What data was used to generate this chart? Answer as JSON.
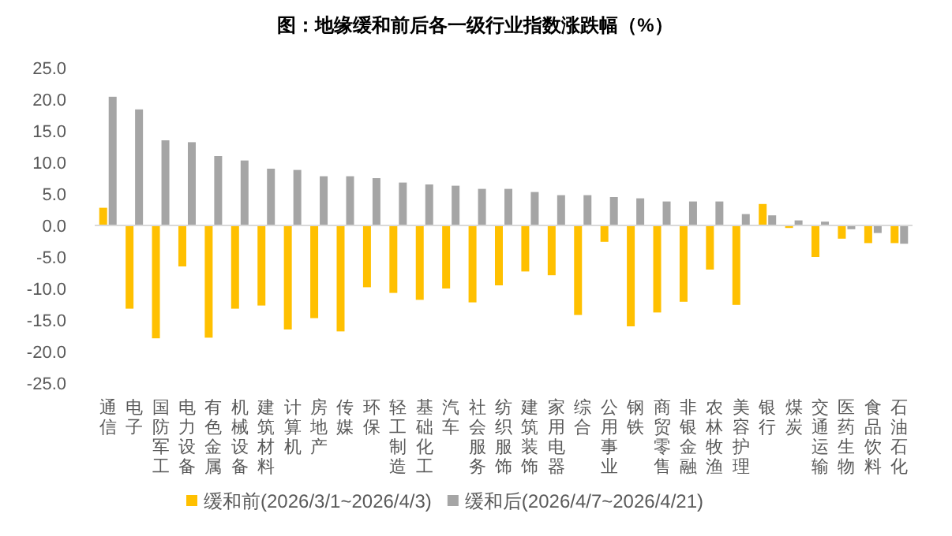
{
  "chart_data": {
    "type": "bar",
    "title": "图：地缘缓和前后各一级行业指数涨跌幅（%）",
    "categories": [
      "通信",
      "电子",
      "国防军工",
      "电力设备",
      "有色金属",
      "机械设备",
      "建筑材料",
      "计算机",
      "房地产",
      "传媒",
      "环保",
      "轻工制造",
      "基础化工",
      "汽车",
      "社会服务",
      "纺织服饰",
      "建筑装饰",
      "家用电器",
      "综合",
      "公用事业",
      "钢铁",
      "商贸零售",
      "非银金融",
      "农林牧渔",
      "美容护理",
      "银行",
      "煤炭",
      "交通运输",
      "医药生物",
      "食品饮料",
      "石油石化"
    ],
    "series": [
      {
        "name": "缓和前(2026/3/1~2026/4/3)",
        "color": "#ffc000",
        "values": [
          2.8,
          -13.2,
          -17.9,
          -6.5,
          -17.8,
          -13.2,
          -12.7,
          -16.5,
          -14.7,
          -16.8,
          -9.8,
          -10.7,
          -11.8,
          -10.0,
          -12.2,
          -9.5,
          -7.3,
          -7.9,
          -14.2,
          -2.6,
          -16.0,
          -13.8,
          -12.1,
          -7.0,
          -12.6,
          3.4,
          -0.4,
          -5.0,
          -2.1,
          -2.8,
          -2.8
        ]
      },
      {
        "name": "缓和后(2026/4/7~2026/4/21)",
        "color": "#a5a5a5",
        "values": [
          20.4,
          18.4,
          13.5,
          13.2,
          11.0,
          10.3,
          9.0,
          8.8,
          7.8,
          7.8,
          7.5,
          6.8,
          6.5,
          6.3,
          5.8,
          5.8,
          5.3,
          4.8,
          4.8,
          4.5,
          4.3,
          3.8,
          3.8,
          3.8,
          1.8,
          1.6,
          0.8,
          0.6,
          -0.6,
          -1.2,
          -2.9
        ]
      }
    ],
    "ylim": [
      -25,
      25
    ],
    "yticks": [
      {
        "value": -25,
        "label": "-25.0"
      },
      {
        "value": -20,
        "label": "-20.0"
      },
      {
        "value": -15,
        "label": "-15.0"
      },
      {
        "value": -10,
        "label": "-10.0"
      },
      {
        "value": -5,
        "label": "-5.0"
      },
      {
        "value": 0,
        "label": "0.0"
      },
      {
        "value": 5,
        "label": "5.0"
      },
      {
        "value": 10,
        "label": "10.0"
      },
      {
        "value": 15,
        "label": "15.0"
      },
      {
        "value": 20,
        "label": "20.0"
      },
      {
        "value": 25,
        "label": "25.0"
      }
    ],
    "grid": false,
    "ref_lines": [
      {
        "axis": "y",
        "value": 0,
        "color": "#d9d9d9"
      }
    ],
    "legend": "bottom"
  }
}
